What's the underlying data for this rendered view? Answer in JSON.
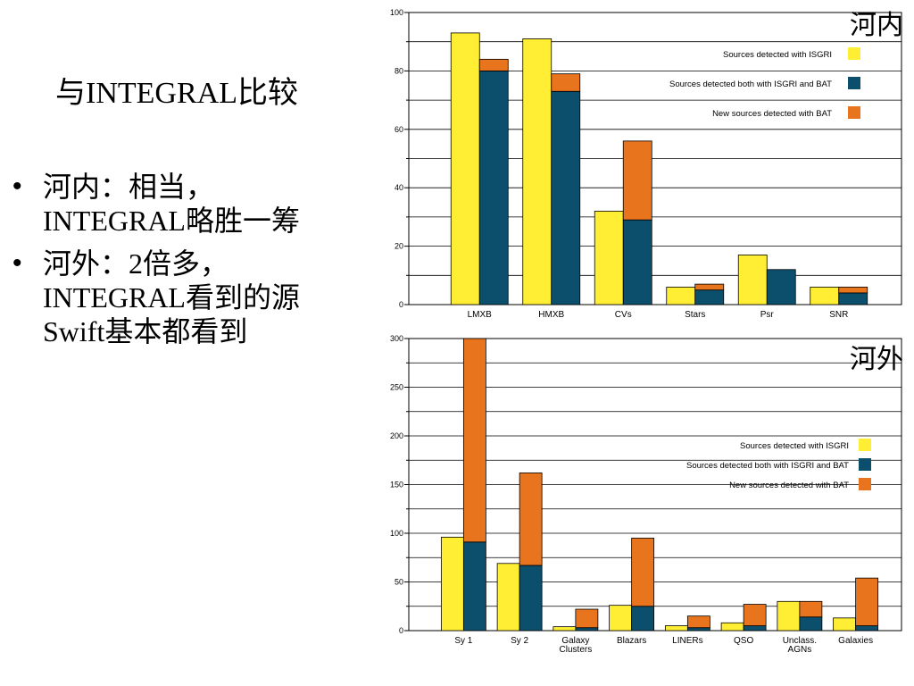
{
  "slide": {
    "title": "与INTEGRAL比较",
    "bullets": [
      {
        "lines": [
          "河内：相当，",
          "INTEGRAL略胜一筹"
        ]
      },
      {
        "lines": [
          "河外：2倍多，",
          "INTEGRAL看到的源",
          "Swift基本都看到"
        ]
      }
    ]
  },
  "chart_data": [
    {
      "type": "bar",
      "region_label": "河内",
      "categories": [
        "LMXB",
        "HMXB",
        "CVs",
        "Stars",
        "Psr",
        "SNR"
      ],
      "ylim": [
        0,
        100
      ],
      "yticks": [
        0,
        20,
        40,
        60,
        80,
        100
      ],
      "grid": true,
      "legend_position": "top-right",
      "legend": [
        {
          "label": "Sources detected with ISGRI",
          "color": "#ffee33"
        },
        {
          "label": "Sources detected both with ISGRI and BAT",
          "color": "#0b4f6c"
        },
        {
          "label": "New sources detected with BAT",
          "color": "#e8741e"
        }
      ],
      "series": [
        {
          "name": "Sources detected with ISGRI",
          "color": "#ffee33",
          "values": [
            93,
            91,
            32,
            6,
            17,
            6
          ]
        },
        {
          "name": "Sources detected both with ISGRI and BAT",
          "color": "#0b4f6c",
          "values": [
            80,
            73,
            29,
            5,
            12,
            4
          ]
        },
        {
          "name": "New sources detected with BAT",
          "color": "#e8741e",
          "values": [
            4,
            6,
            27,
            2,
            0,
            2
          ]
        }
      ]
    },
    {
      "type": "bar",
      "region_label": "河外",
      "categories": [
        "Sy 1",
        "Sy 2",
        "Galaxy\nClusters",
        "Blazars",
        "LINERs",
        "QSO",
        "Unclass.\nAGNs",
        "Galaxies"
      ],
      "ylim": [
        0,
        300
      ],
      "yticks": [
        0,
        50,
        100,
        150,
        200,
        250,
        300
      ],
      "grid": true,
      "legend_position": "middle-right",
      "legend": [
        {
          "label": "Sources detected with ISGRI",
          "color": "#ffee33"
        },
        {
          "label": "Sources detected both with ISGRI and BAT",
          "color": "#0b4f6c"
        },
        {
          "label": "New sources detected with BAT",
          "color": "#e8741e"
        }
      ],
      "series": [
        {
          "name": "Sources detected with ISGRI",
          "color": "#ffee33",
          "values": [
            96,
            69,
            4,
            26,
            5,
            8,
            30,
            13
          ]
        },
        {
          "name": "Sources detected both with ISGRI and BAT",
          "color": "#0b4f6c",
          "values": [
            91,
            67,
            3,
            25,
            3,
            5,
            14,
            5
          ]
        },
        {
          "name": "New sources detected with BAT",
          "color": "#e8741e",
          "values": [
            209,
            95,
            19,
            70,
            12,
            22,
            16,
            49
          ]
        }
      ]
    }
  ]
}
